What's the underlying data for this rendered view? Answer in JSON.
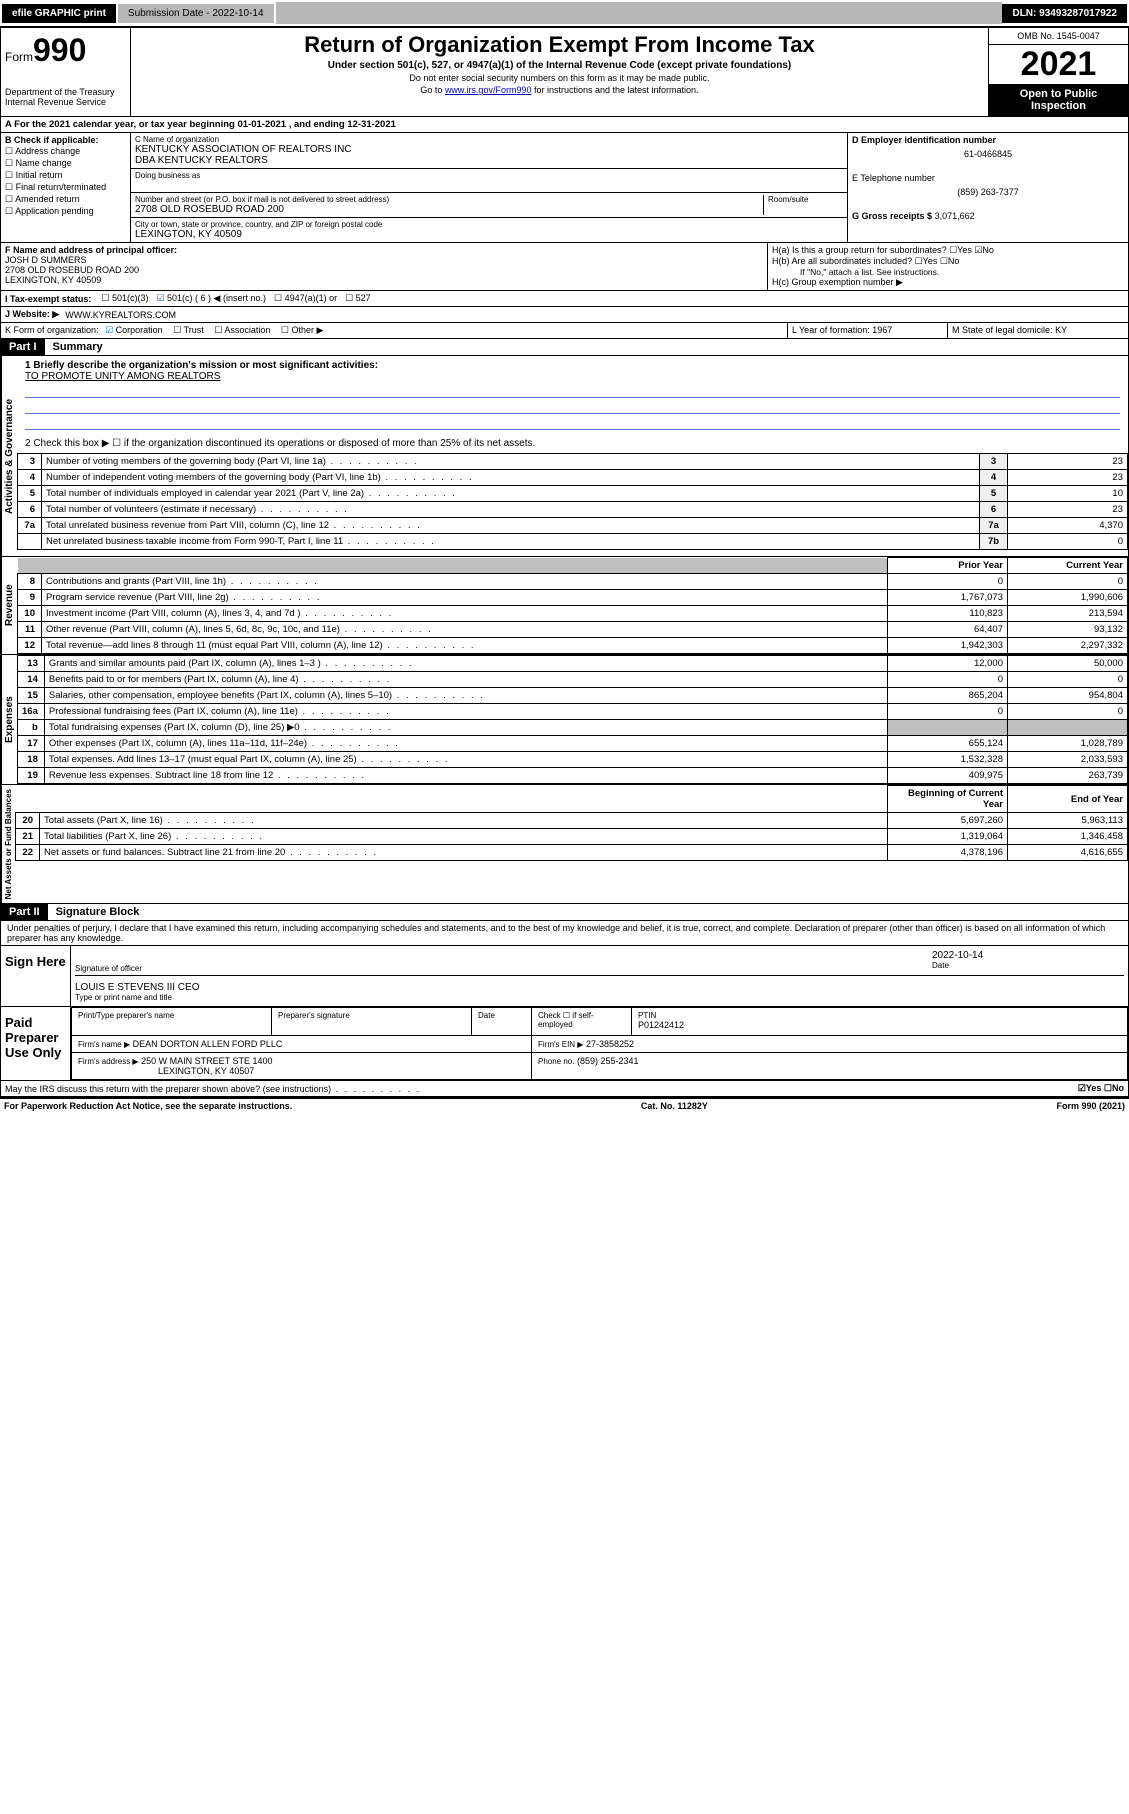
{
  "topbar": {
    "efile": "efile GRAPHIC print",
    "submission_label": "Submission Date - 2022-10-14",
    "dln": "DLN: 93493287017922"
  },
  "header": {
    "form_word": "Form",
    "form_num": "990",
    "dept": "Department of the Treasury",
    "irs": "Internal Revenue Service",
    "title": "Return of Organization Exempt From Income Tax",
    "sub1": "Under section 501(c), 527, or 4947(a)(1) of the Internal Revenue Code (except private foundations)",
    "sub2": "Do not enter social security numbers on this form as it may be made public.",
    "sub3_pre": "Go to ",
    "sub3_link": "www.irs.gov/Form990",
    "sub3_post": " for instructions and the latest information.",
    "omb": "OMB No. 1545-0047",
    "year": "2021",
    "open": "Open to Public Inspection"
  },
  "section_a": "A For the 2021 calendar year, or tax year beginning 01-01-2021   , and ending 12-31-2021",
  "col_b": {
    "label": "B Check if applicable:",
    "items": [
      "Address change",
      "Name change",
      "Initial return",
      "Final return/terminated",
      "Amended return",
      "Application pending"
    ]
  },
  "col_c": {
    "name_label": "C Name of organization",
    "name1": "KENTUCKY ASSOCIATION OF REALTORS INC",
    "name2": "DBA KENTUCKY REALTORS",
    "dba_label": "Doing business as",
    "addr_label": "Number and street (or P.O. box if mail is not delivered to street address)",
    "room_label": "Room/suite",
    "addr": "2708 OLD ROSEBUD ROAD 200",
    "city_label": "City or town, state or province, country, and ZIP or foreign postal code",
    "city": "LEXINGTON, KY  40509"
  },
  "col_d": {
    "ein_label": "D Employer identification number",
    "ein": "61-0466845",
    "phone_label": "E Telephone number",
    "phone": "(859) 263-7377",
    "gross_label": "G Gross receipts $",
    "gross": "3,071,662"
  },
  "box_f": {
    "label": "F Name and address of principal officer:",
    "name": "JOSH D SUMMERS",
    "addr1": "2708 OLD ROSEBUD ROAD 200",
    "addr2": "LEXINGTON, KY  40509"
  },
  "box_h": {
    "ha": "H(a)  Is this a group return for subordinates?",
    "hb": "H(b)  Are all subordinates included?",
    "hb_note": "If \"No,\" attach a list. See instructions.",
    "hc": "H(c)  Group exemption number ▶"
  },
  "row_i": {
    "label": "I  Tax-exempt status:",
    "opts": [
      "501(c)(3)",
      "501(c) ( 6 ) ◀ (insert no.)",
      "4947(a)(1) or",
      "527"
    ]
  },
  "row_j": {
    "label": "J  Website: ▶",
    "val": "WWW.KYREALTORS.COM"
  },
  "row_k": {
    "label": "K Form of organization:",
    "opts": [
      "Corporation",
      "Trust",
      "Association",
      "Other ▶"
    ]
  },
  "row_l": {
    "label": "L Year of formation:",
    "val": "1967"
  },
  "row_m": {
    "label": "M State of legal domicile:",
    "val": "KY"
  },
  "part1": {
    "header": "Part I",
    "title": "Summary",
    "line1_label": "1  Briefly describe the organization's mission or most significant activities:",
    "line1_val": "TO PROMOTE UNITY AMONG REALTORS",
    "line2": "2  Check this box ▶ ☐  if the organization discontinued its operations or disposed of more than 25% of its net assets.",
    "rows_gov": [
      {
        "n": "3",
        "d": "Number of voting members of the governing body (Part VI, line 1a)",
        "k": "3",
        "v": "23"
      },
      {
        "n": "4",
        "d": "Number of independent voting members of the governing body (Part VI, line 1b)",
        "k": "4",
        "v": "23"
      },
      {
        "n": "5",
        "d": "Total number of individuals employed in calendar year 2021 (Part V, line 2a)",
        "k": "5",
        "v": "10"
      },
      {
        "n": "6",
        "d": "Total number of volunteers (estimate if necessary)",
        "k": "6",
        "v": "23"
      },
      {
        "n": "7a",
        "d": "Total unrelated business revenue from Part VIII, column (C), line 12",
        "k": "7a",
        "v": "4,370"
      },
      {
        "n": "",
        "d": "Net unrelated business taxable income from Form 990-T, Part I, line 11",
        "k": "7b",
        "v": "0"
      }
    ],
    "col_prior": "Prior Year",
    "col_current": "Current Year",
    "rows_rev": [
      {
        "n": "8",
        "d": "Contributions and grants (Part VIII, line 1h)",
        "p": "0",
        "c": "0"
      },
      {
        "n": "9",
        "d": "Program service revenue (Part VIII, line 2g)",
        "p": "1,767,073",
        "c": "1,990,606"
      },
      {
        "n": "10",
        "d": "Investment income (Part VIII, column (A), lines 3, 4, and 7d )",
        "p": "110,823",
        "c": "213,594"
      },
      {
        "n": "11",
        "d": "Other revenue (Part VIII, column (A), lines 5, 6d, 8c, 9c, 10c, and 11e)",
        "p": "64,407",
        "c": "93,132"
      },
      {
        "n": "12",
        "d": "Total revenue—add lines 8 through 11 (must equal Part VIII, column (A), line 12)",
        "p": "1,942,303",
        "c": "2,297,332"
      }
    ],
    "rows_exp": [
      {
        "n": "13",
        "d": "Grants and similar amounts paid (Part IX, column (A), lines 1–3 )",
        "p": "12,000",
        "c": "50,000"
      },
      {
        "n": "14",
        "d": "Benefits paid to or for members (Part IX, column (A), line 4)",
        "p": "0",
        "c": "0"
      },
      {
        "n": "15",
        "d": "Salaries, other compensation, employee benefits (Part IX, column (A), lines 5–10)",
        "p": "865,204",
        "c": "954,804"
      },
      {
        "n": "16a",
        "d": "Professional fundraising fees (Part IX, column (A), line 11e)",
        "p": "0",
        "c": "0"
      },
      {
        "n": "b",
        "d": "Total fundraising expenses (Part IX, column (D), line 25) ▶0",
        "p": "",
        "c": ""
      },
      {
        "n": "17",
        "d": "Other expenses (Part IX, column (A), lines 11a–11d, 11f–24e)",
        "p": "655,124",
        "c": "1,028,789"
      },
      {
        "n": "18",
        "d": "Total expenses. Add lines 13–17 (must equal Part IX, column (A), line 25)",
        "p": "1,532,328",
        "c": "2,033,593"
      },
      {
        "n": "19",
        "d": "Revenue less expenses. Subtract line 18 from line 12",
        "p": "409,975",
        "c": "263,739"
      }
    ],
    "col_begin": "Beginning of Current Year",
    "col_end": "End of Year",
    "rows_net": [
      {
        "n": "20",
        "d": "Total assets (Part X, line 16)",
        "p": "5,697,260",
        "c": "5,963,113"
      },
      {
        "n": "21",
        "d": "Total liabilities (Part X, line 26)",
        "p": "1,319,064",
        "c": "1,346,458"
      },
      {
        "n": "22",
        "d": "Net assets or fund balances. Subtract line 21 from line 20",
        "p": "4,378,196",
        "c": "4,616,655"
      }
    ],
    "vert_gov": "Activities & Governance",
    "vert_rev": "Revenue",
    "vert_exp": "Expenses",
    "vert_net": "Net Assets or Fund Balances"
  },
  "part2": {
    "header": "Part II",
    "title": "Signature Block",
    "decl": "Under penalties of perjury, I declare that I have examined this return, including accompanying schedules and statements, and to the best of my knowledge and belief, it is true, correct, and complete. Declaration of preparer (other than officer) is based on all information of which preparer has any knowledge.",
    "sign_here": "Sign Here",
    "sig_officer": "Signature of officer",
    "sig_date": "2022-10-14",
    "sig_date_label": "Date",
    "sig_name": "LOUIS E STEVENS III CEO",
    "sig_name_label": "Type or print name and title",
    "paid": "Paid Preparer Use Only",
    "prep_name_label": "Print/Type preparer's name",
    "prep_sig_label": "Preparer's signature",
    "date_label": "Date",
    "check_self": "Check ☐ if self-employed",
    "ptin_label": "PTIN",
    "ptin": "P01242412",
    "firm_name_label": "Firm's name    ▶",
    "firm_name": "DEAN DORTON ALLEN FORD PLLC",
    "firm_ein_label": "Firm's EIN ▶",
    "firm_ein": "27-3858252",
    "firm_addr_label": "Firm's address ▶",
    "firm_addr1": "250 W MAIN STREET STE 1400",
    "firm_addr2": "LEXINGTON, KY  40507",
    "firm_phone_label": "Phone no.",
    "firm_phone": "(859) 255-2341",
    "discuss": "May the IRS discuss this return with the preparer shown above? (see instructions)",
    "discuss_yn": "☑Yes  ☐No"
  },
  "footer": {
    "left": "For Paperwork Reduction Act Notice, see the separate instructions.",
    "mid": "Cat. No. 11282Y",
    "right": "Form 990 (2021)"
  }
}
